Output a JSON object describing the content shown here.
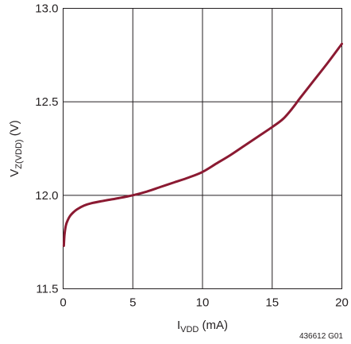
{
  "chart_data": {
    "type": "line",
    "x_ticks": [
      "0",
      "5",
      "10",
      "15",
      "20"
    ],
    "y_ticks": [
      "11.5",
      "12.0",
      "12.5",
      "13.0"
    ],
    "xlim": [
      0,
      20
    ],
    "ylim": [
      11.5,
      13.0
    ],
    "grid": true,
    "ylabel": {
      "main": "V",
      "sub": "Z(VDD)",
      "unit": " (V)"
    },
    "xlabel": {
      "main": "I",
      "sub": "VDD",
      "unit": " (mA)"
    },
    "figure_code": "436612 G01",
    "series": [
      {
        "color": "#8b1a32",
        "x": [
          0.05,
          0.1,
          0.2,
          0.35,
          0.5,
          0.75,
          1.0,
          1.5,
          2.0,
          3.0,
          4.0,
          5.0,
          6.0,
          7.0,
          8.0,
          9.0,
          10.0,
          11.0,
          12.0,
          13.0,
          14.0,
          15.0,
          15.8,
          16.5,
          17.0,
          18.0,
          19.0,
          20.0
        ],
        "y": [
          11.73,
          11.79,
          11.84,
          11.87,
          11.89,
          11.91,
          11.925,
          11.945,
          11.957,
          11.972,
          11.985,
          12.0,
          12.02,
          12.045,
          12.07,
          12.095,
          12.125,
          12.17,
          12.215,
          12.265,
          12.315,
          12.365,
          12.41,
          12.47,
          12.52,
          12.615,
          12.71,
          12.81
        ]
      }
    ]
  }
}
